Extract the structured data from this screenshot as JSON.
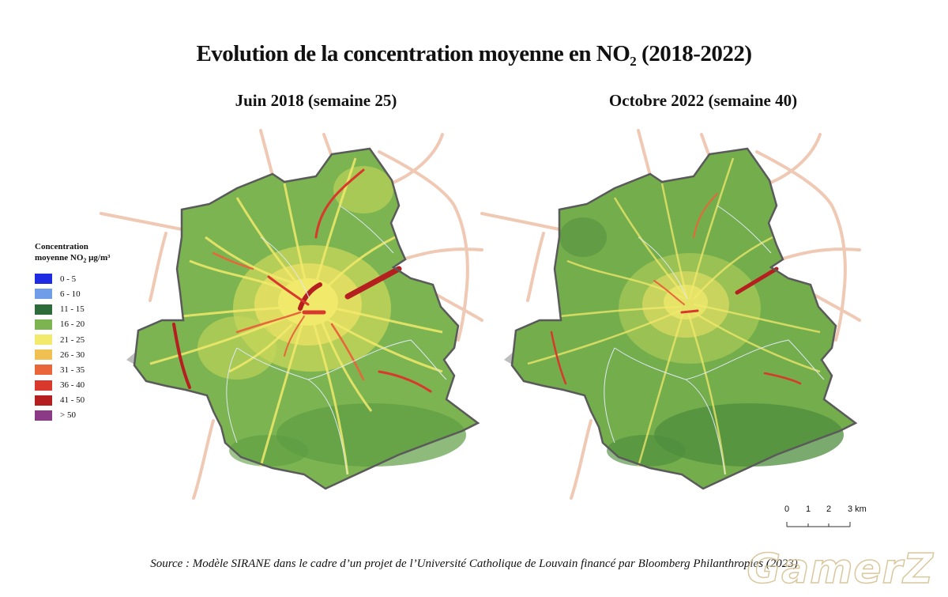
{
  "title": {
    "main": "Evolution de la concentration moyenne en NO",
    "sub": "2",
    "tail": " (2018-2022)"
  },
  "maps": [
    {
      "title": "Juin 2018 (semaine 25)"
    },
    {
      "title": "Octobre 2022 (semaine 40)"
    }
  ],
  "legend": {
    "title_line1": "Concentration",
    "title_line2_prefix": "moyenne NO",
    "title_line2_sub": "2",
    "title_line2_unit": " μg/m³",
    "items": [
      {
        "label": "0 - 5",
        "color": "#1f2be0"
      },
      {
        "label": "6 - 10",
        "color": "#6f9de8"
      },
      {
        "label": "11 - 15",
        "color": "#2e6b3a"
      },
      {
        "label": "16 - 20",
        "color": "#7bb450"
      },
      {
        "label": "21 - 25",
        "color": "#f2ea6c"
      },
      {
        "label": "26 - 30",
        "color": "#f0c152"
      },
      {
        "label": "31 - 35",
        "color": "#e8663a"
      },
      {
        "label": "36 - 40",
        "color": "#d9382c"
      },
      {
        "label": "41 - 50",
        "color": "#b51f1f"
      },
      {
        "label": "> 50",
        "color": "#8b3a86"
      }
    ]
  },
  "scale": {
    "ticks": [
      "0",
      "1",
      "2",
      "3 km"
    ]
  },
  "source": "Source : Modèle SIRANE dans le cadre d’un projet de l’Université Catholique de Louvain financé par Bloomberg Philanthropies (2023)",
  "watermark": "GamerZ",
  "colors": {
    "ring_road": "#f0c9b4",
    "boundary": "#5a5a5a",
    "district_lines": "#dfe8f5",
    "outside_patch": "#bdbdbd"
  }
}
